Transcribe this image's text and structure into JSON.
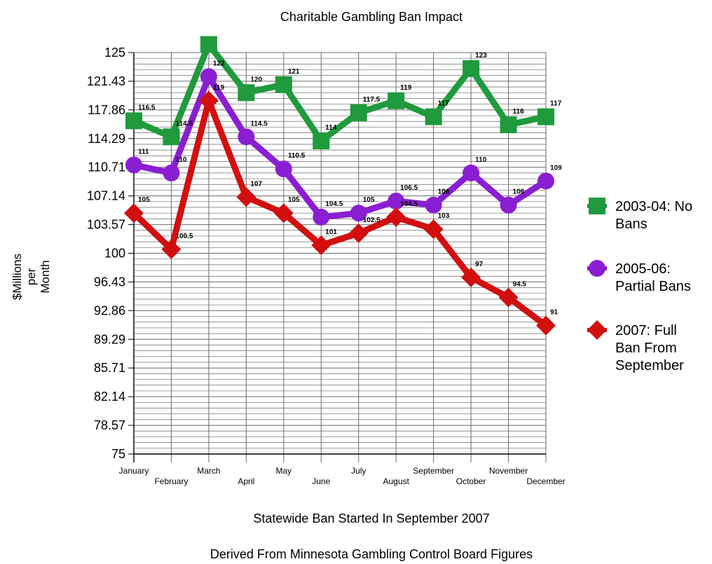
{
  "chart_data": {
    "type": "line",
    "title": "Charitable Gambling Ban Impact",
    "ylabel": [
      "$Millions",
      "per",
      "Month"
    ],
    "xlabel": "Statewide Ban Started In September 2007",
    "footnote": "Derived From Minnesota Gambling Control Board Figures",
    "categories": [
      "January",
      "February",
      "March",
      "April",
      "May",
      "June",
      "July",
      "August",
      "September",
      "October",
      "November",
      "December"
    ],
    "ylim": [
      75,
      125
    ],
    "y_ticks": [
      "75",
      "78.57",
      "82.14",
      "85.71",
      "89.29",
      "92.86",
      "96.43",
      "100",
      "103.57",
      "107.14",
      "110.71",
      "114.29",
      "117.86",
      "121.43",
      "125"
    ],
    "grid": true,
    "legend_position": "right",
    "series": [
      {
        "name": [
          "2003-04: No",
          "Bans"
        ],
        "color": "#1f9a3c",
        "marker": "square",
        "values": [
          116.5,
          114.5,
          126,
          120,
          121,
          114,
          117.5,
          119,
          117,
          123,
          116,
          117
        ],
        "labels": [
          "116.5",
          "114.5",
          "",
          "120",
          "121",
          "114",
          "117.5",
          "119",
          "117",
          "123",
          "116",
          "117"
        ]
      },
      {
        "name": [
          "2005-06:",
          "Partial Bans"
        ],
        "color": "#8a1ed2",
        "marker": "circle",
        "values": [
          111,
          110,
          122,
          114.5,
          110.5,
          104.5,
          105,
          106.5,
          106,
          110,
          106,
          109
        ],
        "labels": [
          "111",
          "110",
          "122",
          "114.5",
          "110.5",
          "104.5",
          "105",
          "106.5",
          "106",
          "110",
          "106",
          "109"
        ]
      },
      {
        "name": [
          "2007: Full",
          "Ban From",
          "September"
        ],
        "color": "#d20f0f",
        "marker": "diamond",
        "values": [
          105,
          100.5,
          119,
          107,
          105,
          101,
          102.5,
          104.5,
          103,
          97,
          94.5,
          91
        ],
        "labels": [
          "105",
          "100.5",
          "119",
          "107",
          "105",
          "101",
          "102.5",
          "104.5",
          "103",
          "97",
          "94.5",
          "91"
        ]
      }
    ]
  }
}
